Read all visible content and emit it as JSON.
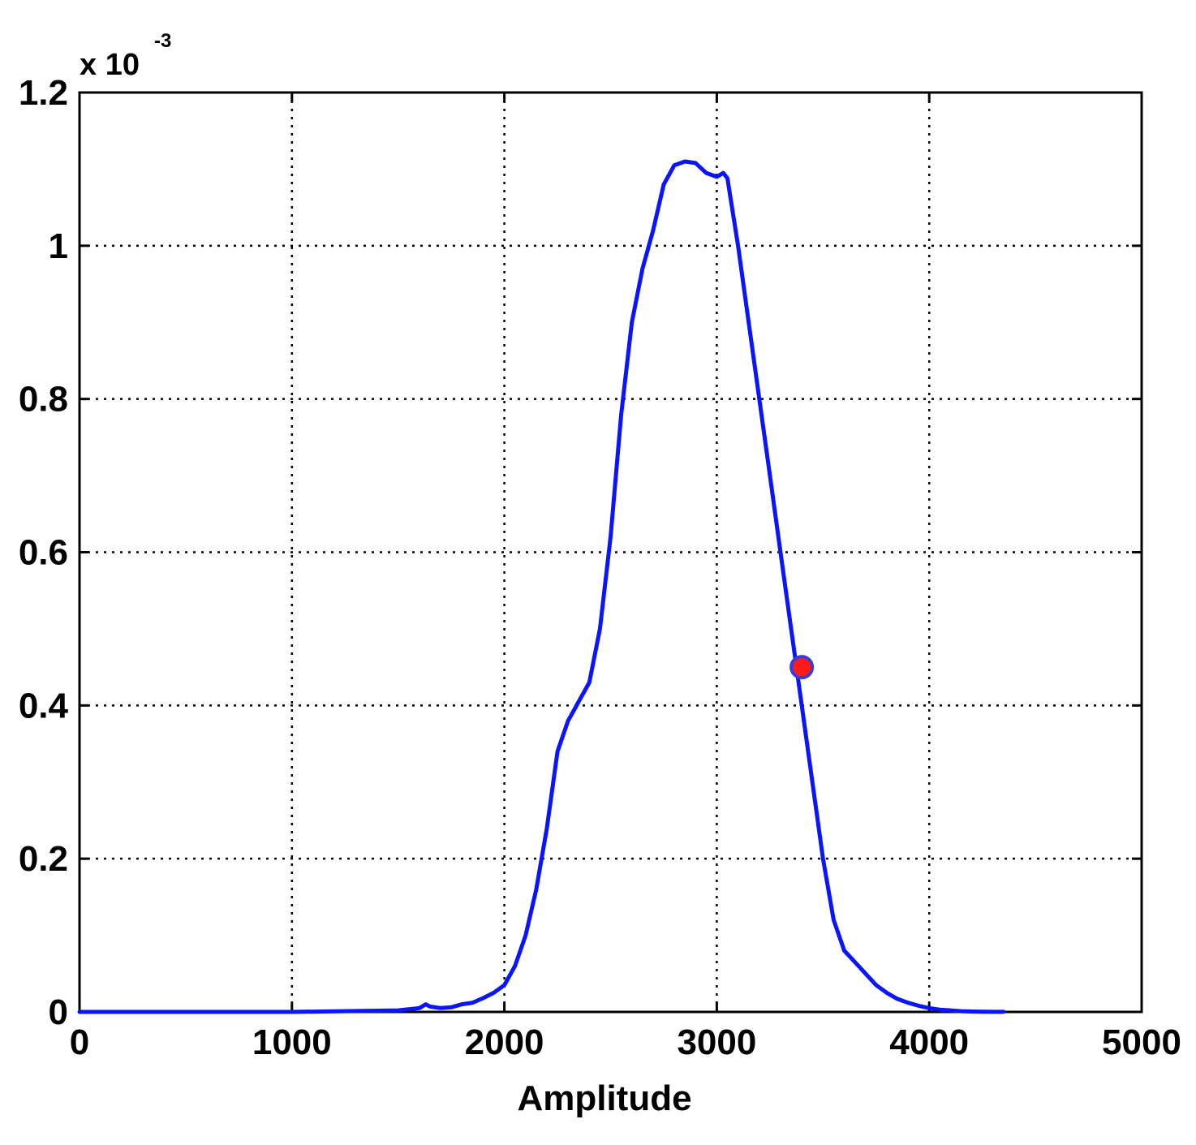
{
  "chart_data": {
    "type": "line",
    "title": "",
    "xlabel": "Amplitude",
    "ylabel": "",
    "y_multiplier_label": "x 10",
    "y_multiplier_exponent": "-3",
    "xlim": [
      0,
      5000
    ],
    "ylim": [
      0,
      1.2
    ],
    "x_ticks": [
      0,
      1000,
      2000,
      3000,
      4000,
      5000
    ],
    "x_tick_labels": [
      "0",
      "1000",
      "2000",
      "3000",
      "4000",
      "5000"
    ],
    "y_ticks": [
      0,
      0.2,
      0.4,
      0.6,
      0.8,
      1.0,
      1.2
    ],
    "y_tick_labels": [
      "0",
      "0.2",
      "0.4",
      "0.6",
      "0.8",
      "1",
      "1.2"
    ],
    "grid": true,
    "grid_style": "dotted",
    "series": [
      {
        "color": "#0a14ff",
        "x": [
          0,
          500,
          1000,
          1500,
          1600,
          1630,
          1650,
          1700,
          1750,
          1800,
          1850,
          1900,
          1950,
          2000,
          2050,
          2100,
          2150,
          2200,
          2250,
          2300,
          2330,
          2350,
          2400,
          2450,
          2500,
          2550,
          2600,
          2650,
          2700,
          2750,
          2800,
          2850,
          2900,
          2950,
          3000,
          3030,
          3050,
          3100,
          3150,
          3200,
          3250,
          3300,
          3350,
          3400,
          3450,
          3500,
          3550,
          3600,
          3650,
          3700,
          3750,
          3800,
          3850,
          3900,
          3950,
          4000,
          4050,
          4100,
          4150,
          4200,
          4250,
          4300,
          4350
        ],
        "y": [
          0,
          0,
          0,
          0.002,
          0.005,
          0.01,
          0.007,
          0.005,
          0.006,
          0.01,
          0.012,
          0.018,
          0.025,
          0.035,
          0.06,
          0.1,
          0.16,
          0.24,
          0.34,
          0.38,
          0.395,
          0.405,
          0.43,
          0.5,
          0.62,
          0.78,
          0.9,
          0.97,
          1.02,
          1.08,
          1.105,
          1.11,
          1.108,
          1.095,
          1.09,
          1.095,
          1.088,
          1.0,
          0.9,
          0.8,
          0.7,
          0.6,
          0.5,
          0.4,
          0.3,
          0.2,
          0.12,
          0.08,
          0.065,
          0.05,
          0.035,
          0.025,
          0.017,
          0.012,
          0.008,
          0.005,
          0.003,
          0.002,
          0.001,
          0.0005,
          0.0002,
          0.0001,
          0.0001
        ]
      }
    ],
    "marker": {
      "x": 3400,
      "y": 0.45,
      "fill": "#ff1a1a",
      "stroke": "#3b3bd6"
    }
  }
}
